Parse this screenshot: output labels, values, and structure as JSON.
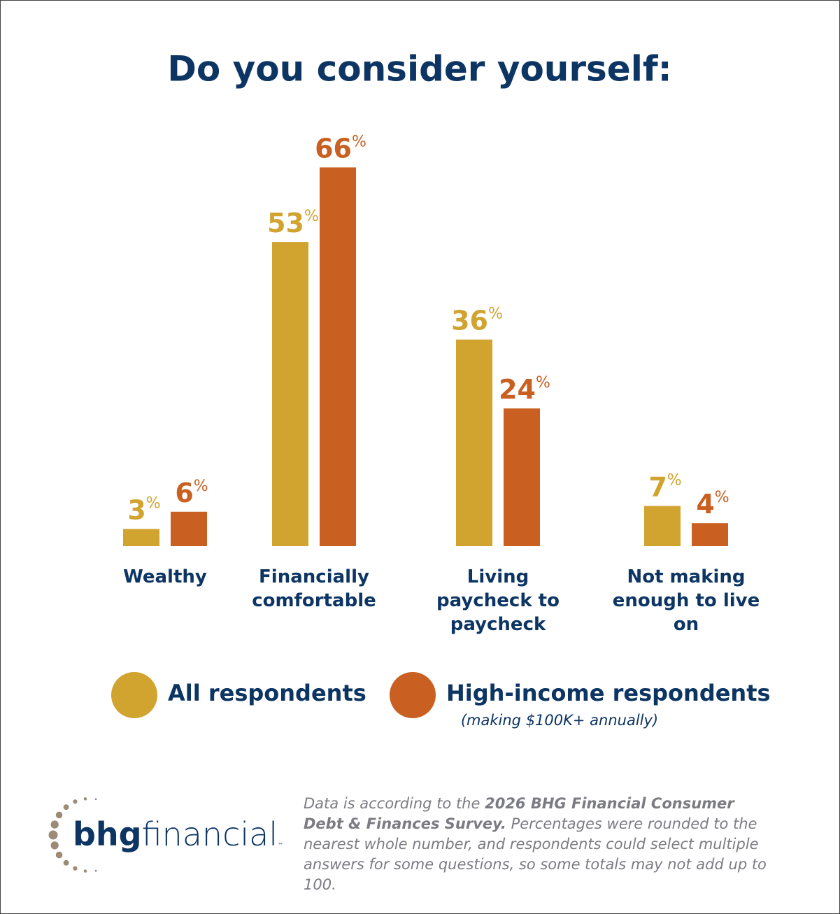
{
  "chart_data": {
    "type": "bar",
    "title": "Do you consider yourself:",
    "categories": [
      "Wealthy",
      "Financially comfortable",
      "Living paycheck to paycheck",
      "Not making enough to live on"
    ],
    "series": [
      {
        "name": "All respondents",
        "color": "#d1a32f",
        "values": [
          3,
          53,
          36,
          7
        ],
        "value_labels": [
          "3%",
          "53%",
          "36%",
          "7%"
        ]
      },
      {
        "name": "High-income respondents",
        "color": "#c95f20",
        "values": [
          6,
          66,
          24,
          4
        ],
        "value_labels": [
          "6%",
          "66%",
          "24%",
          "4%"
        ]
      }
    ],
    "legend_note": "(making $100K+ annually)",
    "ylim": [
      0,
      68
    ],
    "grid": false
  },
  "footer": {
    "logo": {
      "bold": "bhg",
      "light": "financial",
      "mark": "™"
    },
    "note": [
      "Data is according to the ",
      "2026 BHG Financial Consumer Debt & Finances Survey.",
      " Percentages were rounded to the nearest whole number, and respondents could select multiple answers for some questions, so some totals may not add up to 100."
    ]
  }
}
